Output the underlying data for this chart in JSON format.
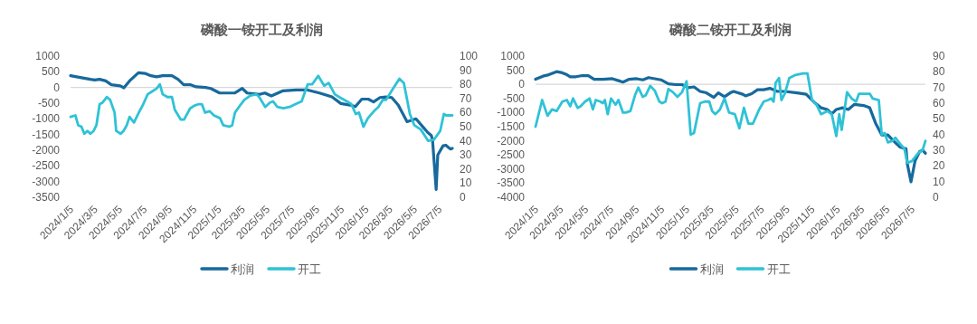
{
  "chart_data": [
    {
      "type": "line",
      "title": "磷酸一铵开工及利润",
      "legend": "bottom",
      "xlim": [
        "2024-01-05",
        "2026-08-07"
      ],
      "xticks": [
        {
          "value": "2024-01-05",
          "label": "2024/1/5"
        },
        {
          "value": "2024-03-05",
          "label": "2024/3/5"
        },
        {
          "value": "2024-05-05",
          "label": "2024/5/5"
        },
        {
          "value": "2024-07-05",
          "label": "2024/7/5"
        },
        {
          "value": "2024-09-05",
          "label": "2024/9/5"
        },
        {
          "value": "2024-11-05",
          "label": "2024/11/5"
        },
        {
          "value": "2025-01-05",
          "label": "2025/1/5"
        },
        {
          "value": "2025-03-05",
          "label": "2025/3/5"
        },
        {
          "value": "2025-05-05",
          "label": "2025/5/5"
        },
        {
          "value": "2025-07-05",
          "label": "2025/7/5"
        },
        {
          "value": "2025-09-05",
          "label": "2025/9/5"
        },
        {
          "value": "2025-11-05",
          "label": "2025/11/5"
        },
        {
          "value": "2026-01-05",
          "label": "2026/1/5"
        },
        {
          "value": "2026-03-05",
          "label": "2026/3/5"
        },
        {
          "value": "2026-05-05",
          "label": "2026/5/5"
        },
        {
          "value": "2026-07-05",
          "label": "2026/7/5"
        }
      ],
      "ylim": [
        -3500,
        1000
      ],
      "yticks": [
        -3500,
        -3000,
        -2500,
        -2000,
        -1500,
        -1000,
        -500,
        0,
        500,
        1000
      ],
      "y2lim": [
        0,
        100
      ],
      "y2ticks": [
        0,
        10,
        20,
        30,
        40,
        50,
        60,
        70,
        80,
        90,
        100
      ],
      "ref_lines": [
        {
          "axis": "y",
          "value": 0,
          "color": "#d9d9d9"
        }
      ],
      "series": [
        {
          "name": "利润",
          "color": "#17699c",
          "x": [
            "2024-01-05",
            "2024-02-01",
            "2024-02-23",
            "2024-03-05",
            "2024-03-17",
            "2024-04-01",
            "2024-04-15",
            "2024-05-07",
            "2024-05-16",
            "2024-05-30",
            "2024-06-21",
            "2024-07-07",
            "2024-07-22",
            "2024-08-05",
            "2024-08-20",
            "2024-09-12",
            "2024-09-27",
            "2024-10-11",
            "2024-10-27",
            "2024-11-11",
            "2024-12-04",
            "2024-12-17",
            "2025-01-08",
            "2025-01-31",
            "2025-02-15",
            "2025-03-05",
            "2025-03-17",
            "2025-04-17",
            "2025-04-30",
            "2025-05-16",
            "2025-06-14",
            "2025-07-16",
            "2025-08-14",
            "2025-09-12",
            "2025-10-13",
            "2025-11-04",
            "2025-11-27",
            "2025-12-10",
            "2025-12-26",
            "2026-01-11",
            "2026-01-24",
            "2026-02-09",
            "2026-02-24",
            "2026-03-10",
            "2026-03-26",
            "2026-04-17",
            "2026-05-09",
            "2026-05-25",
            "2026-06-07",
            "2026-06-16",
            "2026-06-19",
            "2026-06-28",
            "2026-07-02",
            "2026-07-15",
            "2026-07-22",
            "2026-08-02",
            "2026-08-07"
          ],
          "values": [
            375,
            310,
            260,
            240,
            260,
            210,
            90,
            50,
            -10,
            210,
            470,
            450,
            375,
            340,
            375,
            375,
            260,
            90,
            90,
            20,
            0,
            -30,
            -175,
            -175,
            -175,
            -30,
            -175,
            -220,
            -175,
            -270,
            -105,
            -80,
            -80,
            -175,
            -300,
            -510,
            -560,
            -610,
            -370,
            -370,
            -460,
            -320,
            -300,
            -320,
            -560,
            -1090,
            -1000,
            -1240,
            -1430,
            -1530,
            -1670,
            -3250,
            -2150,
            -1860,
            -1840,
            -1960,
            -1940
          ]
        },
        {
          "name": "开工",
          "color": "#2fc2d6",
          "axis": "y2",
          "x": [
            "2024-01-05",
            "2024-01-17",
            "2024-01-24",
            "2024-02-01",
            "2024-02-08",
            "2024-02-16",
            "2024-02-23",
            "2024-03-02",
            "2024-03-09",
            "2024-03-17",
            "2024-03-24",
            "2024-04-04",
            "2024-04-12",
            "2024-04-23",
            "2024-04-27",
            "2024-05-08",
            "2024-05-15",
            "2024-05-23",
            "2024-05-30",
            "2024-06-10",
            "2024-06-22",
            "2024-07-03",
            "2024-07-14",
            "2024-07-25",
            "2024-08-05",
            "2024-08-13",
            "2024-08-20",
            "2024-09-01",
            "2024-09-12",
            "2024-09-19",
            "2024-10-04",
            "2024-10-12",
            "2024-10-27",
            "2024-11-07",
            "2024-11-18",
            "2024-11-25",
            "2024-12-03",
            "2024-12-14",
            "2024-12-25",
            "2025-01-09",
            "2025-01-17",
            "2025-02-01",
            "2025-02-08",
            "2025-02-15",
            "2025-03-02",
            "2025-03-10",
            "2025-03-25",
            "2025-04-09",
            "2025-04-16",
            "2025-05-01",
            "2025-05-12",
            "2025-05-20",
            "2025-05-31",
            "2025-06-15",
            "2025-06-30",
            "2025-07-15",
            "2025-07-30",
            "2025-08-14",
            "2025-08-25",
            "2025-09-09",
            "2025-09-24",
            "2025-10-05",
            "2025-10-20",
            "2025-10-31",
            "2025-11-19",
            "2025-11-30",
            "2025-12-11",
            "2025-12-19",
            "2025-12-30",
            "2026-01-10",
            "2026-01-25",
            "2026-02-05",
            "2026-02-16",
            "2026-02-24",
            "2026-03-11",
            "2026-03-29",
            "2026-04-09",
            "2026-04-24",
            "2026-05-05",
            "2026-05-21",
            "2026-06-08",
            "2026-06-23",
            "2026-07-08",
            "2026-07-17",
            "2026-07-23",
            "2026-08-07"
          ],
          "values": [
            57,
            58,
            51,
            50,
            45,
            47,
            45,
            47,
            51,
            66,
            67,
            71,
            69,
            60,
            47,
            45,
            47,
            51,
            57,
            53,
            60,
            66,
            73,
            75,
            77,
            80,
            73,
            71,
            71,
            62,
            55,
            55,
            63,
            65,
            66,
            66,
            60,
            61,
            58,
            56,
            51,
            50,
            51,
            60,
            66,
            69,
            72,
            73,
            71,
            64,
            67,
            68,
            64,
            63,
            64,
            66,
            68,
            80,
            80,
            86,
            79,
            81,
            73,
            71,
            68,
            66,
            59,
            60,
            50,
            56,
            61,
            64,
            69,
            69,
            76,
            84,
            81,
            59,
            51,
            48,
            40,
            41,
            47,
            59,
            58,
            58
          ]
        }
      ]
    },
    {
      "type": "line",
      "title": "磷酸二铵开工及利润",
      "legend": "bottom",
      "xlim": [
        "2024-01-05",
        "2026-08-07"
      ],
      "xticks": [
        {
          "value": "2024-01-05",
          "label": "2024/1/5"
        },
        {
          "value": "2024-03-05",
          "label": "2024/3/5"
        },
        {
          "value": "2024-05-05",
          "label": "2024/5/5"
        },
        {
          "value": "2024-07-05",
          "label": "2024/7/5"
        },
        {
          "value": "2024-09-05",
          "label": "2024/9/5"
        },
        {
          "value": "2024-11-05",
          "label": "2024/11/5"
        },
        {
          "value": "2025-01-05",
          "label": "2025/1/5"
        },
        {
          "value": "2025-03-05",
          "label": "2025/3/5"
        },
        {
          "value": "2025-05-05",
          "label": "2025/5/5"
        },
        {
          "value": "2025-07-05",
          "label": "2025/7/5"
        },
        {
          "value": "2025-09-05",
          "label": "2025/9/5"
        },
        {
          "value": "2025-11-05",
          "label": "2025/11/5"
        },
        {
          "value": "2026-01-05",
          "label": "2026/1/5"
        },
        {
          "value": "2026-03-05",
          "label": "2026/3/5"
        },
        {
          "value": "2026-05-05",
          "label": "2026/5/5"
        },
        {
          "value": "2026-07-05",
          "label": "2026/7/5"
        }
      ],
      "ylim": [
        -4000,
        1000
      ],
      "yticks": [
        -4000,
        -3500,
        -3000,
        -2500,
        -2000,
        -1500,
        -1000,
        -500,
        0,
        500,
        1000
      ],
      "y2lim": [
        0,
        90
      ],
      "y2ticks": [
        0,
        10,
        20,
        30,
        40,
        50,
        60,
        70,
        80,
        90
      ],
      "ref_lines": [
        {
          "axis": "y",
          "value": 0,
          "color": "#d9d9d9"
        }
      ],
      "series": [
        {
          "name": "利润",
          "color": "#17699c",
          "x": [
            "2024-01-05",
            "2024-01-23",
            "2024-02-06",
            "2024-02-25",
            "2024-03-07",
            "2024-03-21",
            "2024-03-29",
            "2024-04-12",
            "2024-04-27",
            "2024-05-12",
            "2024-05-26",
            "2024-06-17",
            "2024-07-09",
            "2024-07-24",
            "2024-08-04",
            "2024-08-19",
            "2024-09-06",
            "2024-09-21",
            "2024-10-05",
            "2024-10-20",
            "2024-11-04",
            "2024-11-22",
            "2024-12-10",
            "2024-12-25",
            "2025-01-09",
            "2025-01-23",
            "2025-02-07",
            "2025-02-22",
            "2025-03-12",
            "2025-03-23",
            "2025-04-07",
            "2025-04-21",
            "2025-04-29",
            "2025-05-21",
            "2025-05-28",
            "2025-06-12",
            "2025-06-26",
            "2025-07-11",
            "2025-07-26",
            "2025-08-13",
            "2025-08-31",
            "2025-09-30",
            "2025-10-22",
            "2025-11-13",
            "2025-11-27",
            "2025-12-12",
            "2025-12-23",
            "2026-01-03",
            "2026-01-18",
            "2026-02-01",
            "2026-02-16",
            "2026-03-10",
            "2026-03-25",
            "2026-04-08",
            "2026-04-23",
            "2026-05-08",
            "2026-05-22",
            "2026-06-06",
            "2026-06-21",
            "2026-06-24",
            "2026-07-03",
            "2026-07-13",
            "2026-07-24",
            "2026-07-31",
            "2026-08-07"
          ],
          "values": [
            180,
            290,
            340,
            450,
            420,
            340,
            270,
            270,
            310,
            310,
            180,
            180,
            200,
            130,
            80,
            180,
            200,
            160,
            240,
            200,
            160,
            20,
            -10,
            -10,
            -120,
            -90,
            -250,
            -300,
            -460,
            -300,
            -440,
            -300,
            -250,
            -350,
            -410,
            -330,
            -190,
            -190,
            -140,
            -250,
            -250,
            -300,
            -350,
            -670,
            -830,
            -890,
            -1050,
            -890,
            -830,
            -890,
            -710,
            -750,
            -830,
            -1370,
            -1790,
            -1790,
            -2010,
            -2220,
            -2280,
            -2810,
            -3450,
            -2700,
            -2380,
            -2330,
            -2440
          ]
        },
        {
          "name": "开工",
          "color": "#2fc2d6",
          "axis": "y2",
          "x": [
            "2024-01-05",
            "2024-01-21",
            "2024-02-03",
            "2024-02-14",
            "2024-02-25",
            "2024-03-10",
            "2024-03-21",
            "2024-03-29",
            "2024-04-05",
            "2024-04-16",
            "2024-04-23",
            "2024-05-04",
            "2024-05-15",
            "2024-05-23",
            "2024-05-30",
            "2024-06-10",
            "2024-06-16",
            "2024-06-21",
            "2024-06-28",
            "2024-07-06",
            "2024-07-17",
            "2024-07-24",
            "2024-08-04",
            "2024-08-11",
            "2024-08-22",
            "2024-09-02",
            "2024-09-10",
            "2024-09-21",
            "2024-09-28",
            "2024-10-09",
            "2024-10-20",
            "2024-10-31",
            "2024-11-07",
            "2024-11-15",
            "2024-11-22",
            "2024-12-03",
            "2024-12-14",
            "2024-12-25",
            "2025-01-05",
            "2025-01-15",
            "2025-01-23",
            "2025-02-07",
            "2025-02-18",
            "2025-03-01",
            "2025-03-08",
            "2025-03-16",
            "2025-03-27",
            "2025-04-07",
            "2025-04-18",
            "2025-05-02",
            "2025-05-13",
            "2025-05-24",
            "2025-06-04",
            "2025-06-15",
            "2025-06-30",
            "2025-07-11",
            "2025-07-22",
            "2025-07-29",
            "2025-08-04",
            "2025-08-09",
            "2025-08-17",
            "2025-08-23",
            "2025-08-31",
            "2025-09-11",
            "2025-09-26",
            "2025-10-14",
            "2025-10-25",
            "2025-11-05",
            "2025-11-16",
            "2025-11-27",
            "2025-12-12",
            "2025-12-23",
            "2026-01-03",
            "2026-01-10",
            "2026-01-16",
            "2026-01-29",
            "2026-02-09",
            "2026-02-20",
            "2026-02-27",
            "2026-03-25",
            "2026-04-01",
            "2026-04-16",
            "2026-04-23",
            "2026-04-30",
            "2026-05-08",
            "2026-05-19",
            "2026-05-26",
            "2026-06-10",
            "2026-06-17",
            "2026-06-24",
            "2026-07-05",
            "2026-07-20",
            "2026-07-31",
            "2026-08-07"
          ],
          "values": [
            45,
            62,
            52,
            56,
            55,
            61,
            62,
            58,
            63,
            57,
            58,
            61,
            63,
            56,
            62,
            61,
            60,
            62,
            53,
            63,
            59,
            62,
            54,
            54,
            55,
            65,
            70,
            64,
            65,
            71,
            68,
            61,
            60,
            61,
            69,
            67,
            64,
            67,
            74,
            40,
            41,
            60,
            61,
            61,
            55,
            53,
            56,
            63,
            54,
            53,
            44,
            57,
            47,
            47,
            56,
            61,
            62,
            63,
            61,
            73,
            76,
            62,
            66,
            76,
            78,
            79,
            79,
            62,
            59,
            53,
            55,
            53,
            39,
            53,
            43,
            67,
            63,
            61,
            66,
            66,
            63,
            62,
            40,
            41,
            35,
            36,
            38,
            33,
            31,
            22,
            23,
            28,
            30,
            36
          ]
        }
      ]
    }
  ]
}
